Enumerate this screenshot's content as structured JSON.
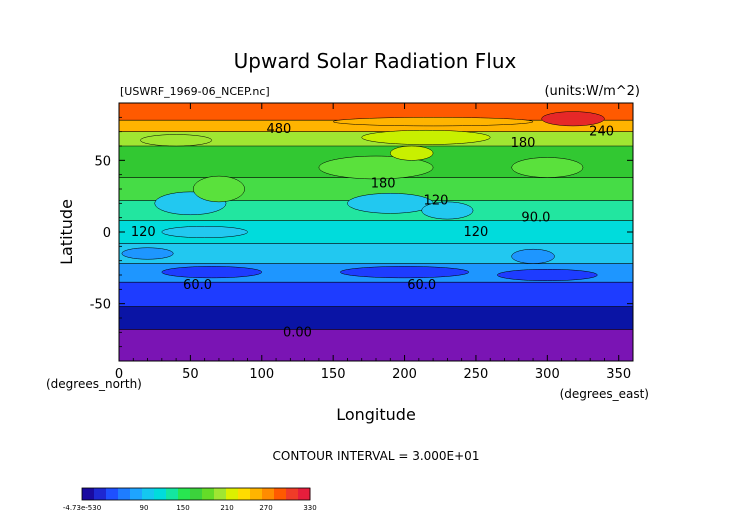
{
  "chart_data": {
    "type": "heatmap",
    "title": "Upward Solar Radiation Flux",
    "file_label": "[USWRF_1969-06_NCEP.nc]",
    "units_label": "(units:W/m^2)",
    "xlabel": "Longitude",
    "ylabel": "Latitude",
    "x_unit_label": "(degrees_east)",
    "y_unit_label": "(degrees_north)",
    "xlim": [
      0,
      360
    ],
    "ylim": [
      -90,
      90
    ],
    "x_ticks": [
      0,
      50,
      100,
      150,
      200,
      250,
      300,
      350
    ],
    "y_ticks": [
      -50,
      0,
      50
    ],
    "contour_interval_text": "CONTOUR INTERVAL = 3.000E+01",
    "contour_labels": [
      {
        "text": "480",
        "lon": 112,
        "lat": 72
      },
      {
        "text": "180",
        "lon": 283,
        "lat": 62
      },
      {
        "text": "240",
        "lon": 338,
        "lat": 70
      },
      {
        "text": "180",
        "lon": 185,
        "lat": 34
      },
      {
        "text": "120",
        "lon": 222,
        "lat": 22
      },
      {
        "text": "90.0",
        "lon": 292,
        "lat": 10
      },
      {
        "text": "120",
        "lon": 17,
        "lat": 0
      },
      {
        "text": "120",
        "lon": 250,
        "lat": 0
      },
      {
        "text": "60.0",
        "lon": 55,
        "lat": -37
      },
      {
        "text": "60.0",
        "lon": 212,
        "lat": -37
      },
      {
        "text": "0.00",
        "lon": 125,
        "lat": -70
      }
    ],
    "zonal_bands": [
      {
        "lat_from": -90,
        "lat_to": -68,
        "color": "#7a14b4"
      },
      {
        "lat_from": -68,
        "lat_to": -52,
        "color": "#0a14a5"
      },
      {
        "lat_from": -52,
        "lat_to": -35,
        "color": "#1e3cff"
      },
      {
        "lat_from": -35,
        "lat_to": -22,
        "color": "#1e96ff"
      },
      {
        "lat_from": -22,
        "lat_to": -8,
        "color": "#22c8f0"
      },
      {
        "lat_from": -8,
        "lat_to": 8,
        "color": "#00dcdc"
      },
      {
        "lat_from": 8,
        "lat_to": 22,
        "color": "#22e6a0"
      },
      {
        "lat_from": 22,
        "lat_to": 38,
        "color": "#46dc46"
      },
      {
        "lat_from": 38,
        "lat_to": 60,
        "color": "#32c832"
      },
      {
        "lat_from": 60,
        "lat_to": 70,
        "color": "#a0e632"
      },
      {
        "lat_from": 70,
        "lat_to": 78,
        "color": "#ffb400"
      },
      {
        "lat_from": 78,
        "lat_to": 90,
        "color": "#ff5a00"
      }
    ],
    "patches": [
      {
        "lon": 50,
        "lat": 20,
        "rx": 25,
        "ry": 8,
        "color": "#22c8f0"
      },
      {
        "lon": 190,
        "lat": 20,
        "rx": 30,
        "ry": 7,
        "color": "#22c8f0"
      },
      {
        "lon": 230,
        "lat": 15,
        "rx": 18,
        "ry": 6,
        "color": "#22c8f0"
      },
      {
        "lon": 70,
        "lat": 30,
        "rx": 18,
        "ry": 9,
        "color": "#5ae13c"
      },
      {
        "lon": 180,
        "lat": 45,
        "rx": 40,
        "ry": 8,
        "color": "#5ae13c"
      },
      {
        "lon": 300,
        "lat": 45,
        "rx": 25,
        "ry": 7,
        "color": "#5ae13c"
      },
      {
        "lon": 205,
        "lat": 55,
        "rx": 15,
        "ry": 5,
        "color": "#c8f000"
      },
      {
        "lon": 215,
        "lat": 66,
        "rx": 45,
        "ry": 5,
        "color": "#c8f000"
      },
      {
        "lon": 220,
        "lat": 77,
        "rx": 70,
        "ry": 3,
        "color": "#ffb400"
      },
      {
        "lon": 318,
        "lat": 79,
        "rx": 22,
        "ry": 5,
        "color": "#e62828"
      },
      {
        "lon": 20,
        "lat": -15,
        "rx": 18,
        "ry": 4,
        "color": "#1e96ff"
      },
      {
        "lon": 290,
        "lat": -17,
        "rx": 15,
        "ry": 5,
        "color": "#1e96ff"
      },
      {
        "lon": 65,
        "lat": -28,
        "rx": 35,
        "ry": 4,
        "color": "#1e3cff"
      },
      {
        "lon": 200,
        "lat": -28,
        "rx": 45,
        "ry": 4,
        "color": "#1e3cff"
      },
      {
        "lon": 300,
        "lat": -30,
        "rx": 35,
        "ry": 4,
        "color": "#1e3cff"
      },
      {
        "lon": 40,
        "lat": 64,
        "rx": 25,
        "ry": 4,
        "color": "#a0e632"
      },
      {
        "lon": 60,
        "lat": 0,
        "rx": 30,
        "ry": 4,
        "color": "#22c8f0"
      }
    ],
    "colorbar": {
      "tick_labels": [
        "-4.73e-530",
        "90",
        "150",
        "210",
        "270",
        "330"
      ],
      "colors": [
        "#1a0aa0",
        "#1e28d2",
        "#1e50ff",
        "#1e7dff",
        "#1ea5ff",
        "#14c8f0",
        "#00dcdc",
        "#14e6a0",
        "#28e650",
        "#3cd23c",
        "#64dc28",
        "#a0e632",
        "#dcf000",
        "#ffdc00",
        "#ffb400",
        "#ff8c00",
        "#ff5a00",
        "#f03c28",
        "#e61e3c"
      ]
    }
  }
}
